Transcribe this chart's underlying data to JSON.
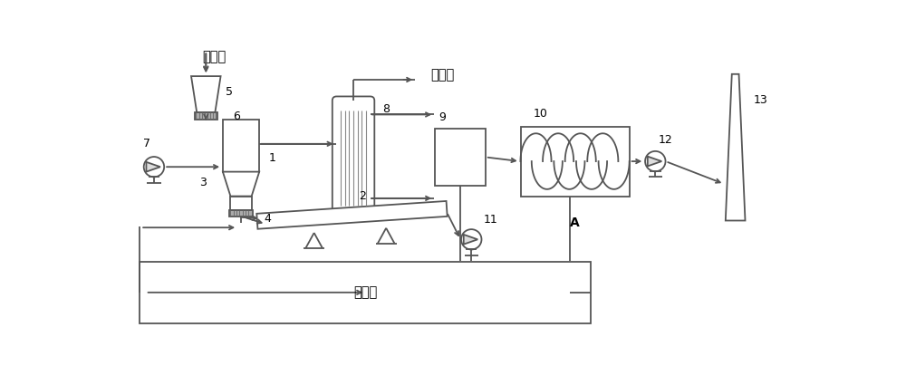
{
  "bg_color": "#ffffff",
  "line_color": "#555555",
  "lw": 1.3,
  "fig_width": 10.0,
  "fig_height": 4.25,
  "labels": {
    "biomass": "生物质",
    "combustible_gas": "可燃气",
    "activated_carbon": "活性炭",
    "A": "A",
    "1": "1",
    "2": "2",
    "3": "3",
    "4": "4",
    "5": "5",
    "6": "6",
    "7": "7",
    "8": "8",
    "9": "9",
    "10": "10",
    "11": "11",
    "12": "12",
    "13": "13"
  }
}
